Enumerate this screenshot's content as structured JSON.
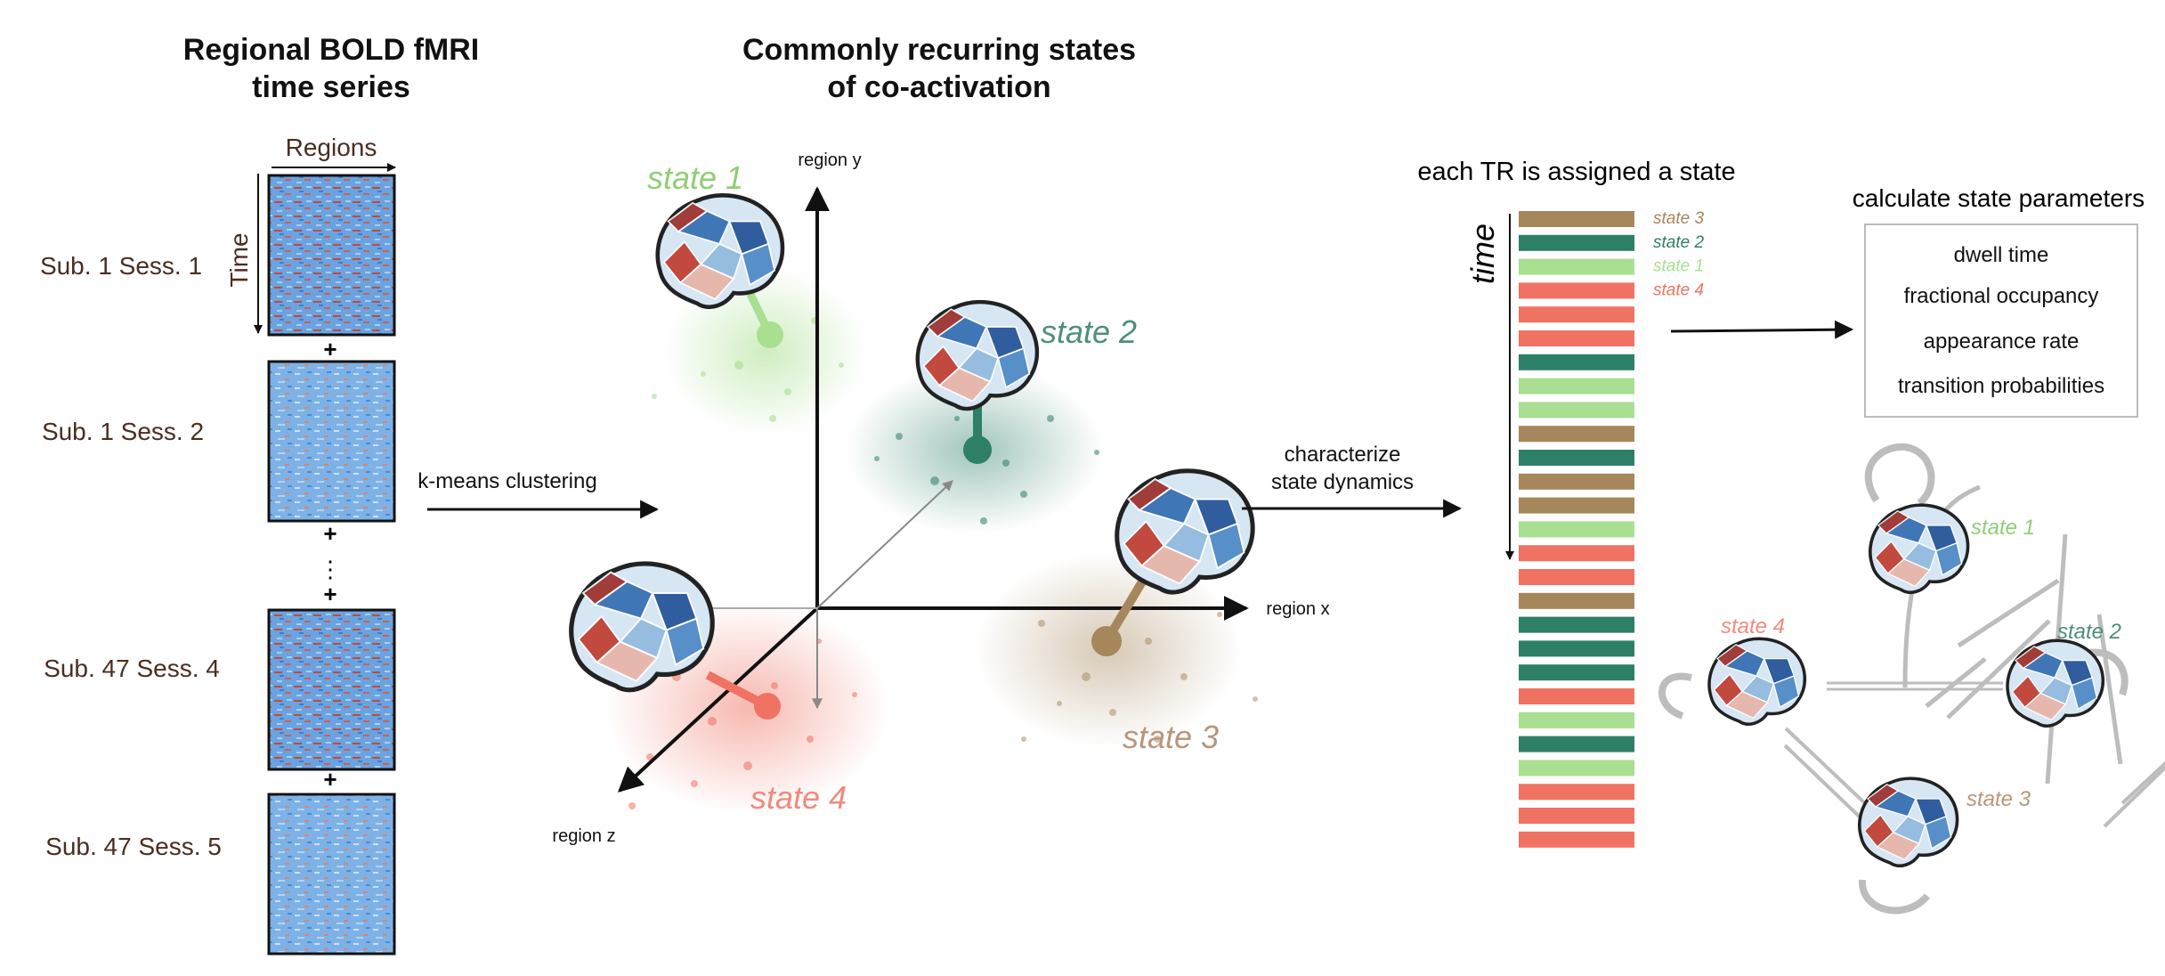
{
  "colors": {
    "state1": "#a8df90",
    "state2": "#2e7f68",
    "state3": "#a6875c",
    "state4": "#ef7262",
    "state1_label": "#8fce76",
    "state2_label": "#4d8e7c",
    "state3_label": "#b8967a",
    "state4_label": "#f08a7e",
    "arrow": "#111111",
    "transition_arrow": "#bdbdbd"
  },
  "titles": {
    "left": [
      "Regional BOLD fMRI",
      "time series"
    ],
    "middle": [
      "Commonly recurring states",
      "of co-activation"
    ]
  },
  "matrix_axes": {
    "columns": "Regions",
    "rows": "Time"
  },
  "sessions": [
    {
      "label": "Sub. 1 Sess. 1",
      "intensity": "high"
    },
    {
      "label": "Sub. 1 Sess. 2",
      "intensity": "low"
    },
    {
      "label": "Sub. 47 Sess. 4",
      "intensity": "high"
    },
    {
      "label": "Sub. 47 Sess. 5",
      "intensity": "low"
    }
  ],
  "separators": {
    "plus": "+",
    "ellipsis": "⋮"
  },
  "steps": {
    "clustering": "k-means clustering",
    "characterize": [
      "characterize",
      "state dynamics"
    ]
  },
  "state_space": {
    "axis_x": "region x",
    "axis_y": "region y",
    "axis_z": "region z",
    "states": [
      {
        "label": "state 1",
        "color_key": "state1"
      },
      {
        "label": "state 2",
        "color_key": "state2"
      },
      {
        "label": "state 3",
        "color_key": "state3"
      },
      {
        "label": "state 4",
        "color_key": "state4"
      }
    ]
  },
  "assignment": {
    "title": "each TR is assigned a state",
    "time_label": "time",
    "sequence": [
      3,
      2,
      1,
      4,
      4,
      4,
      2,
      1,
      1,
      3,
      2,
      3,
      3,
      1,
      4,
      4,
      3,
      2,
      2,
      2,
      4,
      1,
      2,
      1,
      4,
      4,
      4
    ],
    "legend": [
      {
        "label": "state 3",
        "color_key": "state3"
      },
      {
        "label": "state 2",
        "color_key": "state2"
      },
      {
        "label": "state 1",
        "color_key": "state1"
      },
      {
        "label": "state 4",
        "color_key": "state4"
      }
    ]
  },
  "parameters": {
    "title": "calculate state parameters",
    "items": [
      "dwell time",
      "fractional occupancy",
      "appearance rate",
      "transition probabilities"
    ]
  },
  "transitions": {
    "nodes": [
      {
        "label": "state 1",
        "color_key": "state1_label"
      },
      {
        "label": "state 2",
        "color_key": "state2_label"
      },
      {
        "label": "state 3",
        "color_key": "state3_label"
      },
      {
        "label": "state 4",
        "color_key": "state4_label"
      }
    ]
  }
}
